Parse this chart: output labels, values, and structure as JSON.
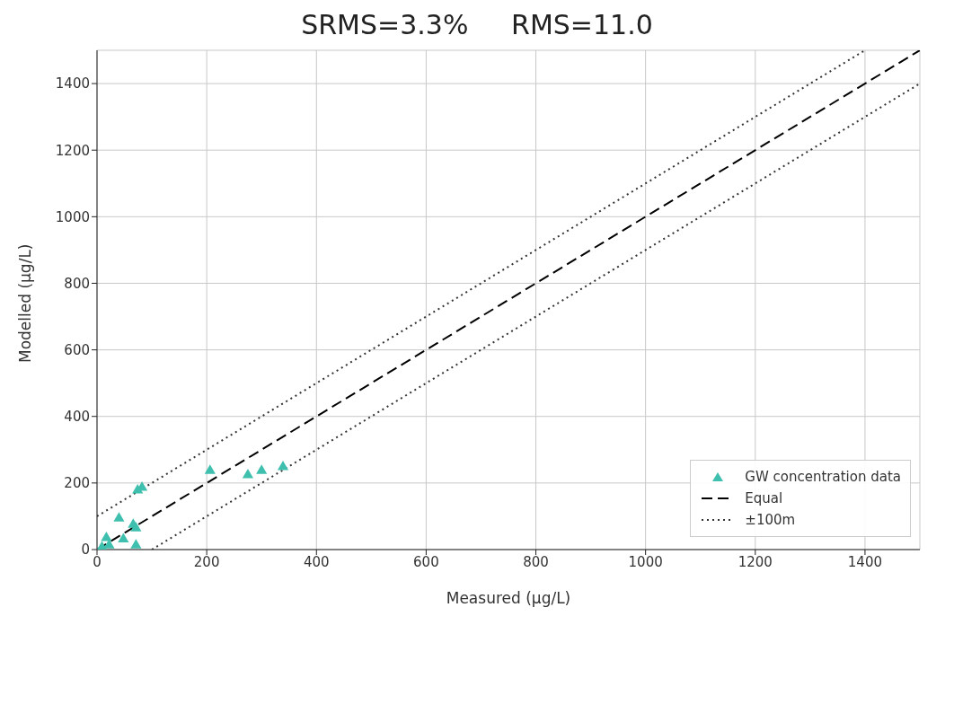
{
  "chart_data": {
    "type": "scatter",
    "title": "SRMS=3.3%     RMS=11.0",
    "xlabel": "Measured (μg/L)",
    "ylabel": "Modelled (μg/L)",
    "xlim": [
      0,
      1500
    ],
    "ylim": [
      0,
      1500
    ],
    "xticks": [
      0,
      200,
      400,
      600,
      800,
      1000,
      1200,
      1400
    ],
    "yticks": [
      0,
      200,
      400,
      600,
      800,
      1000,
      1200,
      1400
    ],
    "grid": true,
    "legend": "bottom right",
    "series": [
      {
        "name": "GW concentration data",
        "marker": "triangle",
        "color": "#3fbfae",
        "x": [
          206,
          275,
          300,
          339,
          74,
          82,
          40,
          66,
          71,
          48,
          17,
          22,
          71,
          9
        ],
        "values": [
          237,
          224,
          237,
          248,
          178,
          186,
          94,
          75,
          64,
          31,
          35,
          13,
          13,
          7
        ]
      },
      {
        "name": "Equal",
        "type": "line",
        "line_style": "dashed",
        "color": "#000000",
        "x": [
          0,
          1500
        ],
        "values": [
          0,
          1500
        ]
      },
      {
        "name": "±100m",
        "type": "line",
        "line_style": "dotted",
        "color": "#333333",
        "x": [
          100,
          1500
        ],
        "values": [
          0,
          1400
        ]
      },
      {
        "type": "line",
        "line_style": "dotted",
        "color": "#333333",
        "x": [
          0,
          1400
        ],
        "values": [
          100,
          1500
        ]
      }
    ]
  }
}
